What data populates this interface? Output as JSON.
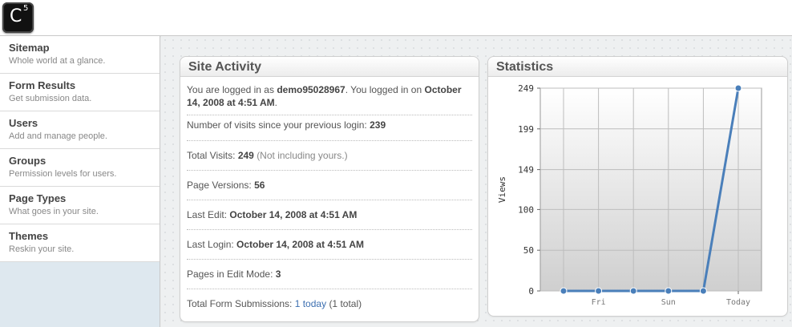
{
  "logo": {
    "letter": "C",
    "superscript": "5"
  },
  "sidebar": {
    "items": [
      {
        "title": "Sitemap",
        "subtitle": "Whole world at a glance."
      },
      {
        "title": "Form Results",
        "subtitle": "Get submission data."
      },
      {
        "title": "Users",
        "subtitle": "Add and manage people."
      },
      {
        "title": "Groups",
        "subtitle": "Permission levels for users."
      },
      {
        "title": "Page Types",
        "subtitle": "What goes in your site."
      },
      {
        "title": "Themes",
        "subtitle": "Reskin your site."
      }
    ]
  },
  "activity": {
    "title": "Site Activity",
    "logged_prefix": "You are logged in as ",
    "username": "demo95028967",
    "logged_mid": ". You logged in on ",
    "login_date": "October 14, 2008 at 4:51 AM",
    "logged_suffix": ".",
    "visits_label": "Number of visits since your previous login: ",
    "visits_value": "239",
    "total_visits_label": "Total Visits: ",
    "total_visits_value": "249",
    "total_visits_note": "(Not including yours.)",
    "page_versions_label": "Page Versions: ",
    "page_versions_value": "56",
    "last_edit_label": "Last Edit: ",
    "last_edit_value": "October 14, 2008 at 4:51 AM",
    "last_login_label": "Last Login: ",
    "last_login_value": "October 14, 2008 at 4:51 AM",
    "edit_mode_label": "Pages in Edit Mode: ",
    "edit_mode_value": "3",
    "form_sub_label": "Total Form Submissions: ",
    "form_sub_link": "1 today",
    "form_sub_total": "(1 total)"
  },
  "stats": {
    "title": "Statistics"
  },
  "chart_data": {
    "type": "line",
    "categories": [
      "",
      "Fri",
      "",
      "Sun",
      "",
      "Today"
    ],
    "values": [
      0,
      0,
      0,
      0,
      0,
      249
    ],
    "ylabel": "Views",
    "yticks": [
      "0",
      "50",
      "100",
      "149",
      "199",
      "249"
    ],
    "ylim": [
      0,
      249
    ],
    "grid": true,
    "line_color": "#4a7fba"
  }
}
